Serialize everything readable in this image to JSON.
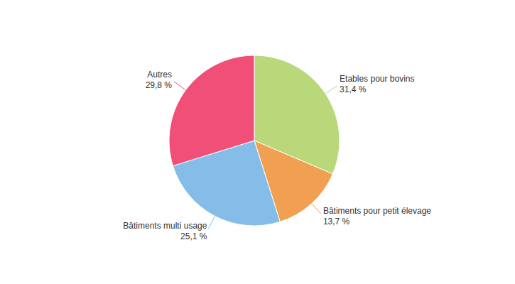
{
  "chart_data": {
    "type": "pie",
    "categories": [
      "Etables pour bovins",
      "Bâtiments pour petit élevage",
      "Bâtiments multi usage",
      "Autres"
    ],
    "values": [
      31.4,
      13.7,
      25.1,
      29.8
    ],
    "value_labels": [
      "31,4 %",
      "13,7 %",
      "25,1 %",
      "29,8 %"
    ],
    "colors": [
      "#b8d87a",
      "#f0a050",
      "#85bde8",
      "#f05078"
    ]
  }
}
